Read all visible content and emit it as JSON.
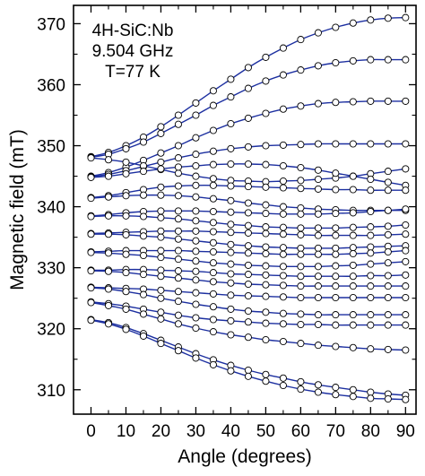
{
  "chart_data": {
    "type": "line",
    "title": "",
    "annotations": [
      "4H-SiC:Nb",
      "9.504 GHz",
      "T=77 K"
    ],
    "xlabel": "Angle (degrees)",
    "ylabel": "Magnetic field (mT)",
    "xlim": [
      -5,
      93
    ],
    "ylim": [
      306,
      373
    ],
    "xticks": [
      0,
      10,
      20,
      30,
      40,
      50,
      60,
      70,
      80,
      90
    ],
    "yticks": [
      310,
      320,
      330,
      340,
      350,
      360,
      370
    ],
    "grid": false,
    "legend": "none",
    "line_color": "#1c2fa0",
    "marker_face": "#ffffff",
    "marker_edge": "#000000",
    "x": [
      0,
      5,
      10,
      15,
      20,
      25,
      30,
      35,
      40,
      45,
      50,
      55,
      60,
      65,
      70,
      75,
      80,
      85,
      90
    ],
    "series": [
      {
        "values": [
          348.2,
          348.9,
          350.0,
          351.4,
          353.1,
          355.0,
          357.0,
          359.0,
          360.9,
          362.8,
          364.5,
          366.0,
          367.4,
          368.5,
          369.4,
          370.1,
          370.6,
          370.9,
          371.0
        ]
      },
      {
        "values": [
          348.1,
          348.6,
          349.5,
          350.6,
          352.0,
          353.5,
          355.0,
          356.6,
          358.0,
          359.4,
          360.6,
          361.6,
          362.4,
          363.1,
          363.6,
          363.9,
          364.1,
          364.1,
          364.1
        ]
      },
      {
        "values": [
          345.0,
          345.6,
          346.5,
          347.6,
          348.8,
          350.0,
          351.3,
          352.5,
          353.6,
          354.5,
          355.3,
          356.0,
          356.5,
          356.9,
          357.1,
          357.2,
          357.3,
          357.3,
          357.3
        ]
      },
      {
        "values": [
          344.9,
          345.3,
          345.9,
          346.6,
          347.3,
          348.0,
          348.6,
          349.1,
          349.5,
          349.8,
          350.0,
          350.1,
          350.2,
          350.3,
          350.3,
          350.3,
          350.3,
          350.3,
          350.3
        ]
      },
      {
        "values": [
          348.0,
          347.7,
          347.3,
          346.7,
          346.1,
          345.5,
          345.0,
          344.6,
          344.3,
          344.2,
          344.1,
          344.2,
          344.3,
          344.5,
          344.7,
          345.0,
          345.4,
          345.8,
          346.2
        ]
      },
      {
        "values": [
          344.8,
          345.0,
          345.4,
          345.8,
          346.2,
          346.5,
          346.7,
          346.9,
          347.0,
          347.0,
          346.9,
          346.7,
          346.4,
          346.0,
          345.5,
          345.0,
          344.5,
          344.0,
          343.5
        ]
      },
      {
        "values": [
          341.5,
          341.8,
          342.3,
          342.8,
          343.2,
          343.4,
          343.5,
          343.5,
          343.4,
          343.3,
          343.2,
          343.1,
          343.0,
          342.9,
          342.8,
          342.8,
          342.7,
          342.7,
          342.7
        ]
      },
      {
        "values": [
          341.4,
          341.6,
          341.8,
          341.9,
          341.9,
          341.8,
          341.6,
          341.3,
          341.0,
          340.6,
          340.3,
          340.0,
          339.8,
          339.6,
          339.5,
          339.4,
          339.4,
          339.4,
          339.4
        ]
      },
      {
        "values": [
          338.5,
          338.7,
          339.0,
          339.2,
          339.3,
          339.3,
          339.3,
          339.2,
          339.1,
          339.0,
          338.9,
          338.8,
          338.8,
          338.8,
          338.9,
          339.0,
          339.2,
          339.4,
          339.6
        ]
      },
      {
        "values": [
          338.4,
          338.5,
          338.5,
          338.4,
          338.2,
          338.0,
          337.7,
          337.4,
          337.1,
          336.9,
          336.7,
          336.6,
          336.5,
          336.5,
          336.5,
          336.6,
          336.7,
          336.8,
          337.0
        ]
      },
      {
        "values": [
          335.6,
          335.7,
          335.8,
          335.9,
          336.0,
          336.0,
          336.0,
          335.9,
          335.8,
          335.7,
          335.6,
          335.5,
          335.4,
          335.3,
          335.3,
          335.3,
          335.3,
          335.4,
          335.5
        ]
      },
      {
        "values": [
          335.5,
          335.5,
          335.4,
          335.2,
          335.0,
          334.7,
          334.4,
          334.1,
          333.8,
          333.6,
          333.4,
          333.3,
          333.2,
          333.2,
          333.2,
          333.3,
          333.4,
          333.5,
          333.6
        ]
      },
      {
        "values": [
          332.6,
          332.7,
          332.8,
          332.8,
          332.8,
          332.8,
          332.7,
          332.6,
          332.5,
          332.4,
          332.3,
          332.2,
          332.2,
          332.2,
          332.2,
          332.3,
          332.4,
          332.6,
          332.8
        ]
      },
      {
        "values": [
          332.5,
          332.4,
          332.2,
          332.0,
          331.7,
          331.4,
          331.1,
          330.8,
          330.6,
          330.4,
          330.3,
          330.2,
          330.2,
          330.2,
          330.3,
          330.4,
          330.6,
          330.8,
          331.0
        ]
      },
      {
        "values": [
          329.6,
          329.6,
          329.7,
          329.7,
          329.6,
          329.5,
          329.4,
          329.2,
          329.0,
          328.9,
          328.8,
          328.7,
          328.6,
          328.6,
          328.6,
          328.6,
          328.7,
          328.7,
          328.8
        ]
      },
      {
        "values": [
          329.5,
          329.4,
          329.2,
          328.9,
          328.6,
          328.3,
          328.0,
          327.7,
          327.5,
          327.3,
          327.2,
          327.1,
          327.0,
          327.0,
          327.0,
          327.0,
          327.0,
          327.0,
          327.0
        ]
      },
      {
        "values": [
          326.8,
          326.7,
          326.6,
          326.5,
          326.3,
          326.1,
          325.9,
          325.7,
          325.5,
          325.4,
          325.3,
          325.2,
          325.1,
          325.1,
          325.1,
          325.1,
          325.1,
          325.1,
          325.1
        ]
      },
      {
        "values": [
          326.7,
          326.5,
          326.1,
          325.6,
          325.0,
          324.5,
          324.0,
          323.6,
          323.2,
          322.9,
          322.7,
          322.5,
          322.4,
          322.3,
          322.3,
          322.3,
          322.3,
          322.3,
          322.3
        ]
      },
      {
        "values": [
          324.4,
          324.1,
          323.7,
          323.2,
          322.7,
          322.2,
          321.8,
          321.5,
          321.3,
          321.1,
          320.9,
          320.8,
          320.7,
          320.7,
          320.6,
          320.6,
          320.6,
          320.6,
          320.6
        ]
      },
      {
        "values": [
          324.3,
          323.8,
          323.2,
          322.4,
          321.6,
          320.8,
          320.1,
          319.5,
          319.0,
          318.6,
          318.2,
          317.9,
          317.6,
          317.3,
          317.1,
          316.9,
          316.7,
          316.6,
          316.5
        ]
      },
      {
        "values": [
          321.5,
          321.0,
          320.2,
          319.2,
          318.1,
          317.0,
          315.9,
          314.9,
          314.0,
          313.2,
          312.5,
          311.9,
          311.3,
          310.8,
          310.4,
          310.0,
          309.6,
          309.3,
          309.1
        ]
      },
      {
        "values": [
          321.4,
          320.8,
          319.9,
          318.8,
          317.6,
          316.4,
          315.2,
          314.1,
          313.1,
          312.2,
          311.4,
          310.7,
          310.1,
          309.6,
          309.2,
          308.9,
          308.6,
          308.5,
          308.4
        ]
      }
    ]
  }
}
